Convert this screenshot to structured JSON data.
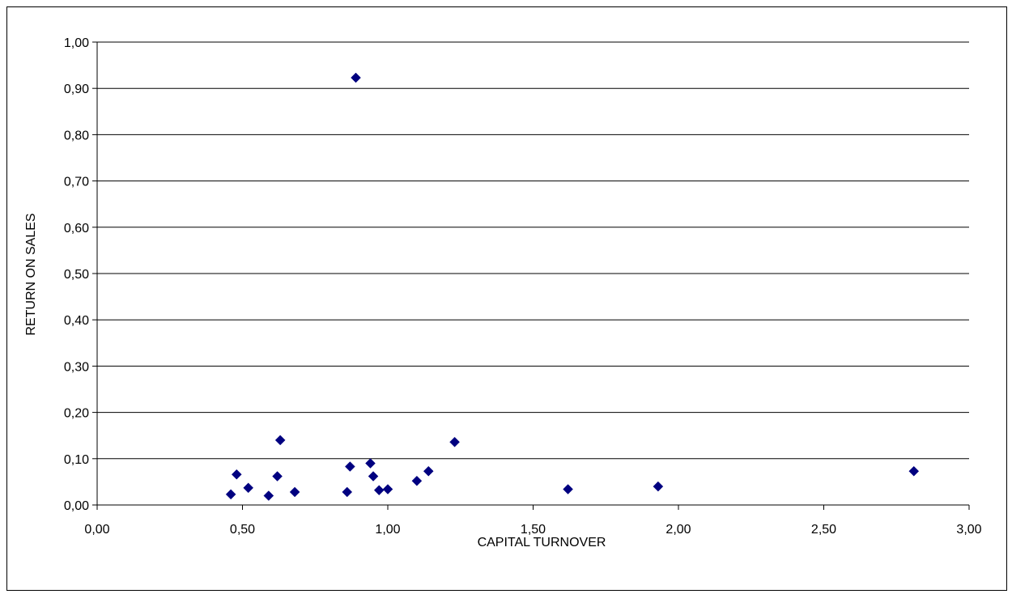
{
  "chart_data": {
    "type": "scatter",
    "title": "",
    "xlabel": "CAPITAL TURNOVER",
    "ylabel": "RETURN ON SALES",
    "xlim": [
      0,
      3
    ],
    "ylim": [
      0,
      1
    ],
    "x_ticks": [
      "0,00",
      "0,50",
      "1,00",
      "1,50",
      "2,00",
      "2,50",
      "3,00"
    ],
    "y_ticks": [
      "0,00",
      "0,10",
      "0,20",
      "0,30",
      "0,40",
      "0,50",
      "0,60",
      "0,70",
      "0,80",
      "0,90",
      "1,00"
    ],
    "grid": {
      "horizontal": true,
      "vertical": false
    },
    "legend": "none",
    "marker": "diamond",
    "marker_color": "#000080",
    "series": [
      {
        "points": [
          {
            "x": 0.46,
            "y": 0.023
          },
          {
            "x": 0.48,
            "y": 0.066
          },
          {
            "x": 0.52,
            "y": 0.037
          },
          {
            "x": 0.59,
            "y": 0.02
          },
          {
            "x": 0.62,
            "y": 0.062
          },
          {
            "x": 0.63,
            "y": 0.14
          },
          {
            "x": 0.68,
            "y": 0.028
          },
          {
            "x": 0.86,
            "y": 0.028
          },
          {
            "x": 0.87,
            "y": 0.083
          },
          {
            "x": 0.89,
            "y": 0.923
          },
          {
            "x": 0.94,
            "y": 0.09
          },
          {
            "x": 0.95,
            "y": 0.062
          },
          {
            "x": 0.97,
            "y": 0.032
          },
          {
            "x": 1.0,
            "y": 0.034
          },
          {
            "x": 1.1,
            "y": 0.052
          },
          {
            "x": 1.14,
            "y": 0.073
          },
          {
            "x": 1.23,
            "y": 0.136
          },
          {
            "x": 1.62,
            "y": 0.034
          },
          {
            "x": 1.93,
            "y": 0.04
          },
          {
            "x": 2.81,
            "y": 0.073
          }
        ]
      }
    ]
  }
}
